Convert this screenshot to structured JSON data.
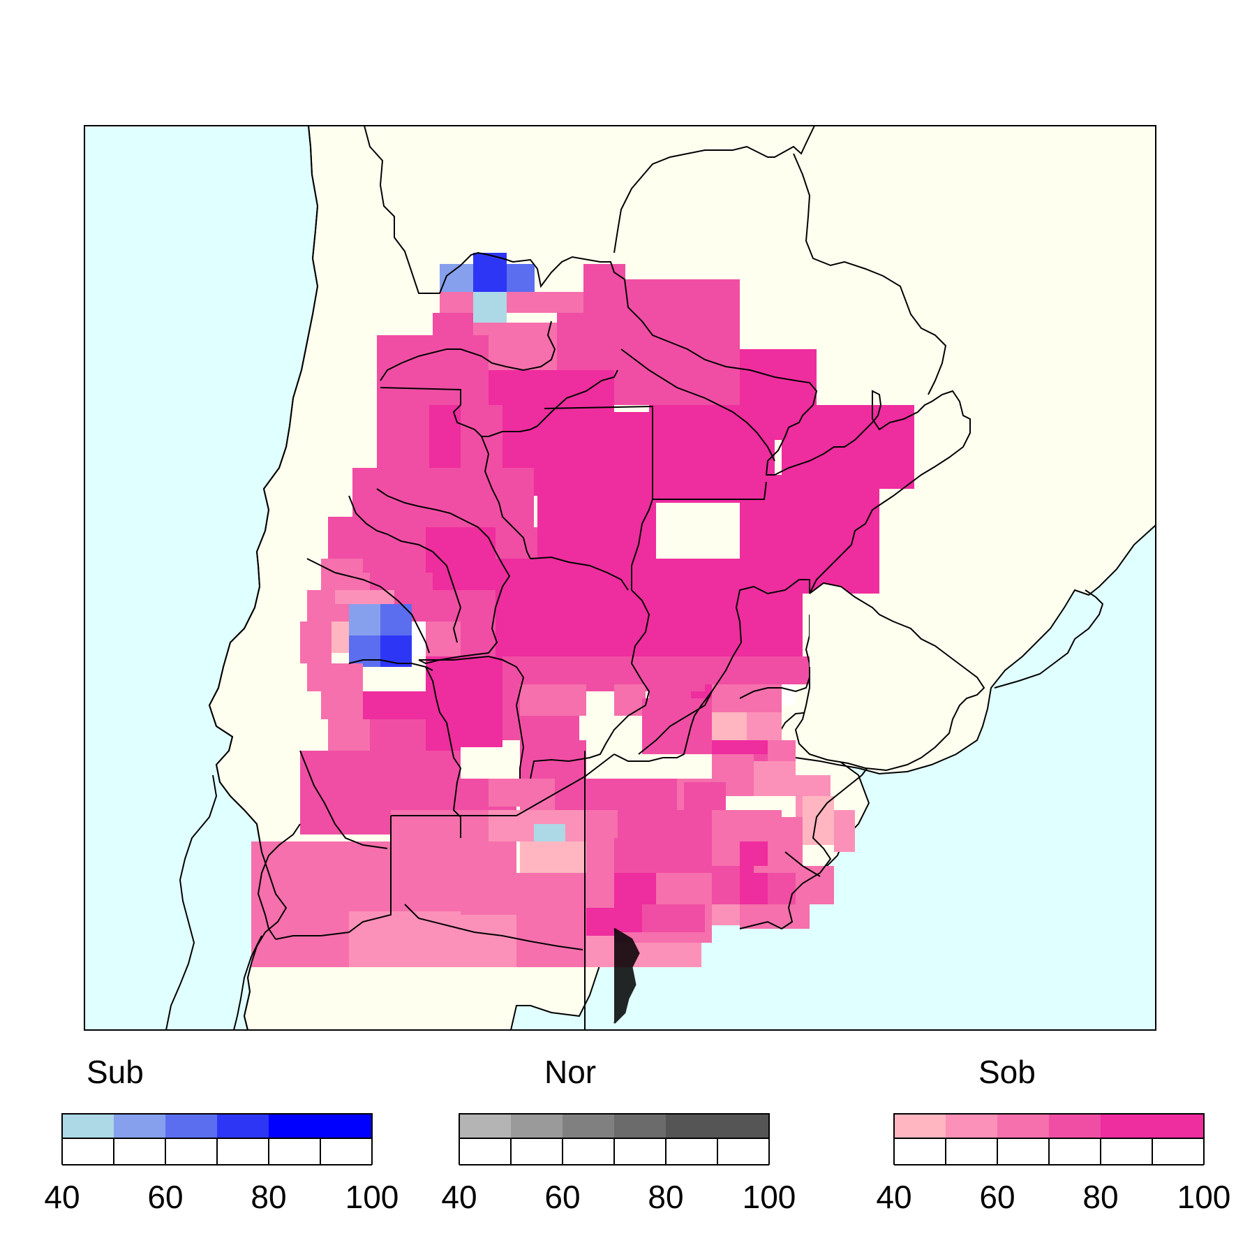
{
  "map": {
    "ocean_color": "#e0ffff",
    "land_color": "#fffff0",
    "border_color": "#000000",
    "features": [
      "ocean",
      "land",
      "country-borders",
      "province-borders",
      "rio-de-la-plata"
    ]
  },
  "legends": [
    {
      "id": "sub",
      "title": "Sub",
      "colors": [
        "#add8e6",
        "#87a0ee",
        "#5b6ef0",
        "#2e36f6",
        "#0000ff",
        "#0000ff"
      ],
      "ticks": [
        "40",
        "60",
        "80",
        "100"
      ]
    },
    {
      "id": "nor",
      "title": "Nor",
      "colors": [
        "#b4b4b4",
        "#9a9a9a",
        "#808080",
        "#6b6b6b",
        "#555555",
        "#555555"
      ],
      "ticks": [
        "40",
        "60",
        "80",
        "100"
      ]
    },
    {
      "id": "sob",
      "title": "Sob",
      "colors": [
        "#ffb6c1",
        "#fb91b8",
        "#f570ac",
        "#f04ea4",
        "#ee2d9e",
        "#ee2d9e"
      ],
      "ticks": [
        "40",
        "60",
        "80",
        "100"
      ]
    }
  ]
}
